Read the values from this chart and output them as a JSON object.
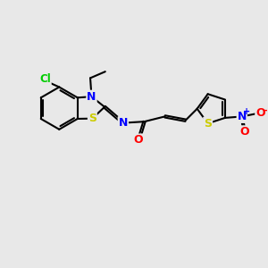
{
  "background_color": "#e8e8e8",
  "atom_colors": {
    "C": "#000000",
    "N": "#0000ff",
    "O": "#ff0000",
    "S": "#cccc00",
    "Cl": "#00cc00",
    "H": "#000000"
  },
  "bond_color": "#000000",
  "bond_width": 1.5,
  "font_size_atom": 8.5
}
